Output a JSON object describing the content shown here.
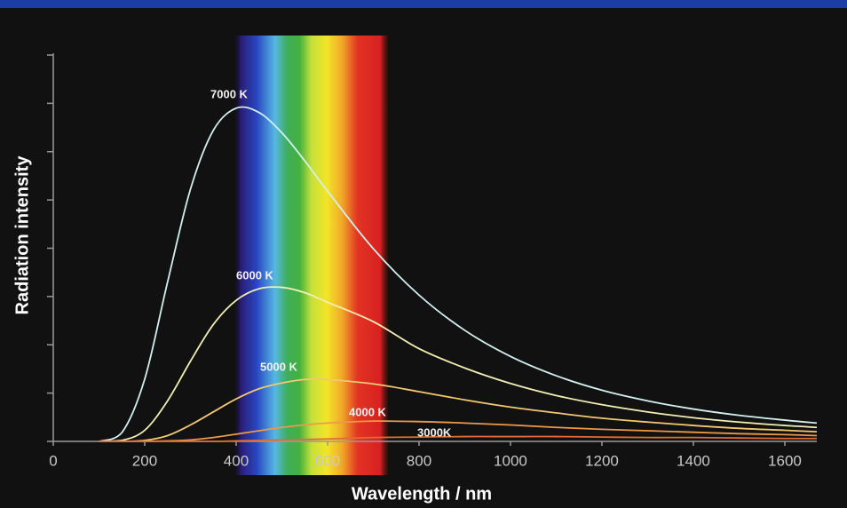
{
  "chart_data": {
    "type": "line",
    "x_label": "Wavelength / nm",
    "y_label": "Radiation intensity",
    "x": [
      100,
      150,
      200,
      250,
      300,
      350,
      400,
      450,
      500,
      550,
      600,
      700,
      800,
      900,
      1000,
      1100,
      1200,
      1300,
      1400,
      1500,
      1600,
      1670
    ],
    "series": [
      {
        "name": "7000 K",
        "color": "#d4f0ee",
        "values": [
          0,
          0.18,
          1.29,
          3.3,
          5.22,
          6.44,
          6.9,
          6.81,
          6.39,
          5.81,
          5.18,
          3.99,
          3.03,
          2.3,
          1.76,
          1.36,
          1.06,
          0.84,
          0.67,
          0.54,
          0.44,
          0.38
        ]
      },
      {
        "name": "6000 K",
        "color": "#f2efb4",
        "values": [
          0,
          0.02,
          0.23,
          0.84,
          1.66,
          2.42,
          2.92,
          3.16,
          3.19,
          3.08,
          2.88,
          2.48,
          1.92,
          1.52,
          1.2,
          0.95,
          0.76,
          0.61,
          0.49,
          0.4,
          0.33,
          0.29
        ]
      },
      {
        "name": "5000 K",
        "color": "#f2c870",
        "values": [
          0,
          0,
          0.02,
          0.12,
          0.34,
          0.61,
          0.88,
          1.09,
          1.21,
          1.28,
          1.28,
          1.19,
          1.03,
          0.86,
          0.71,
          0.59,
          0.48,
          0.4,
          0.33,
          0.27,
          0.23,
          0.2
        ]
      },
      {
        "name": "4000 K",
        "color": "#ec9a48",
        "values": [
          0,
          0,
          0,
          0.01,
          0.03,
          0.08,
          0.15,
          0.22,
          0.29,
          0.34,
          0.38,
          0.42,
          0.41,
          0.38,
          0.34,
          0.29,
          0.25,
          0.22,
          0.19,
          0.16,
          0.14,
          0.12
        ]
      },
      {
        "name": "3000K",
        "color": "#e26a34",
        "values": [
          0,
          0,
          0,
          0,
          0,
          0,
          0.01,
          0.02,
          0.03,
          0.04,
          0.05,
          0.08,
          0.09,
          0.1,
          0.1,
          0.1,
          0.09,
          0.08,
          0.08,
          0.07,
          0.06,
          0.06
        ]
      }
    ],
    "xlim": [
      0,
      1670
    ],
    "xticks": [
      0,
      200,
      400,
      600,
      800,
      1000,
      1200,
      1400,
      1600
    ],
    "ylim": [
      0,
      8
    ],
    "yticks": [
      0,
      1,
      2,
      3,
      4,
      5,
      6,
      7,
      8
    ],
    "grid": false
  }
}
